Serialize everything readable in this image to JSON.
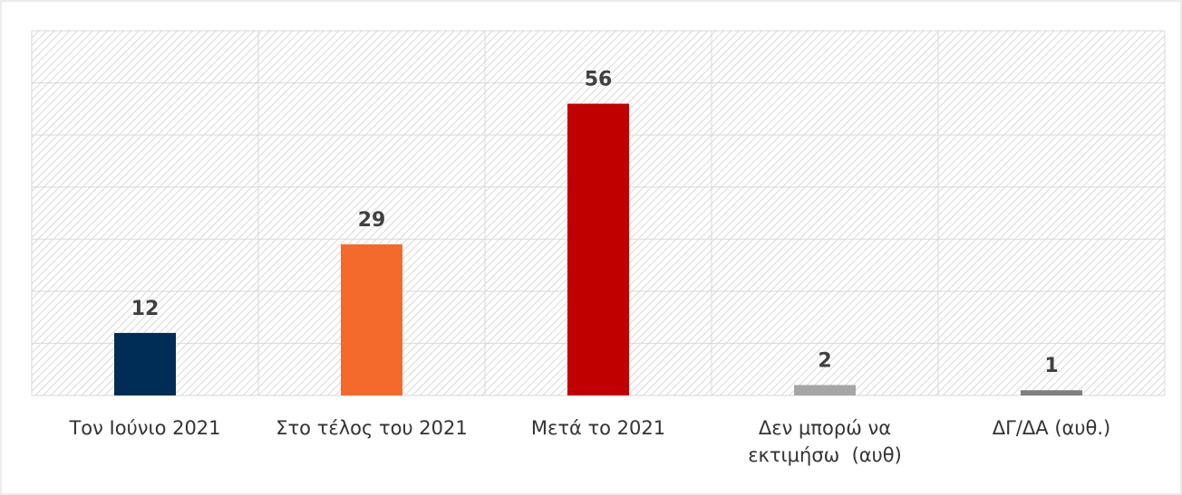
{
  "chart_data": {
    "type": "bar",
    "categories": [
      "Τον Ιούνιο 2021",
      "Στο τέλος του 2021",
      "Μετά το 2021",
      "Δεν μπορώ να εκτιμήσω  (αυθ)",
      "ΔΓ/ΔΑ (αυθ.)"
    ],
    "values": [
      12,
      29,
      56,
      2,
      1
    ],
    "colors": [
      "#002d55",
      "#f4692c",
      "#c00000",
      "#a6a6a6",
      "#7f7f7f"
    ],
    "ylim": [
      0,
      70
    ],
    "yticks": [
      0,
      10,
      20,
      30,
      40,
      50,
      60,
      70
    ],
    "grid": true
  }
}
